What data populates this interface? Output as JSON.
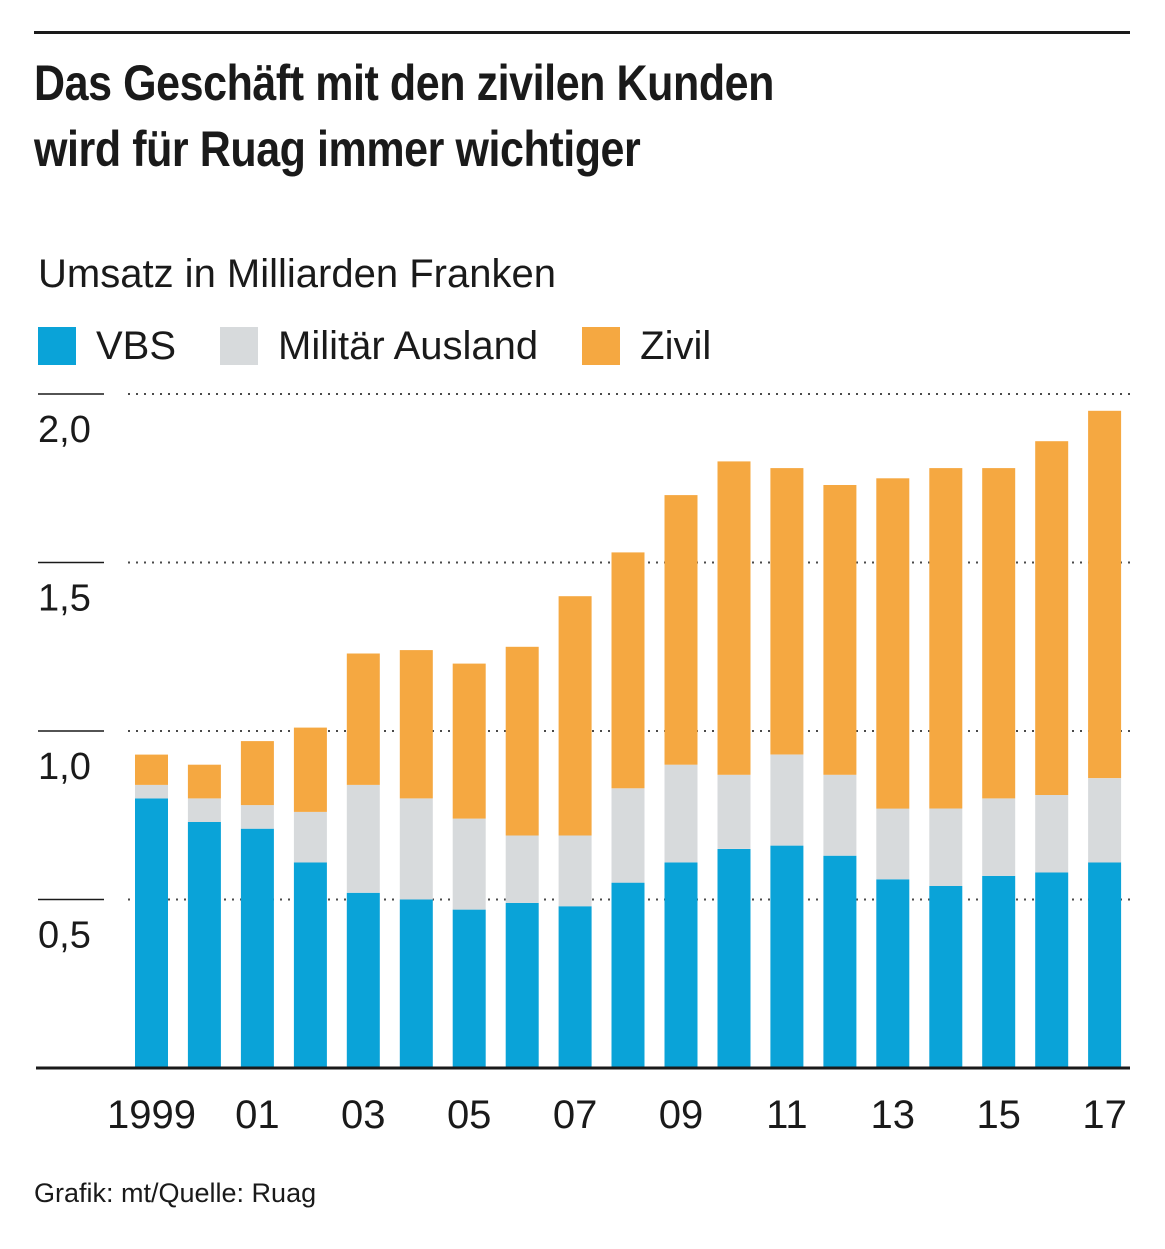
{
  "title_lines": [
    "Das Geschäft mit den zivilen Kunden",
    "wird für Ruag immer wichtiger"
  ],
  "source": "Grafik: mt/Quelle: Ruag",
  "colors": {
    "vbs": "#0aa3d8",
    "militaer": "#d7dadc",
    "zivil": "#f5a841",
    "text": "#1a1a1a",
    "grid": "#4a4a4a"
  },
  "chart_data": {
    "type": "bar",
    "stacked": true,
    "title": "Das Geschäft mit den zivilen Kunden wird für Ruag immer wichtiger",
    "subtitle": "Umsatz in Milliarden Franken",
    "xlabel": "",
    "ylabel": "Umsatz in Milliarden Franken",
    "ylim": [
      0,
      2.0
    ],
    "y_ticks": [
      {
        "value": 0.5,
        "label": "0,5"
      },
      {
        "value": 1.0,
        "label": "1,0"
      },
      {
        "value": 1.5,
        "label": "1,5"
      },
      {
        "value": 2.0,
        "label": "2,0"
      }
    ],
    "grid": true,
    "legend_position": "top-left",
    "categories": [
      "1999",
      "2000",
      "2001",
      "2002",
      "2003",
      "2004",
      "2005",
      "2006",
      "2007",
      "2008",
      "2009",
      "2010",
      "2011",
      "2012",
      "2013",
      "2014",
      "2015",
      "2016",
      "2017"
    ],
    "x_tick_labels": [
      "1999",
      "",
      "01",
      "",
      "03",
      "",
      "05",
      "",
      "07",
      "",
      "09",
      "",
      "11",
      "",
      "13",
      "",
      "15",
      "",
      "17"
    ],
    "series": [
      {
        "name": "VBS",
        "color_key": "vbs",
        "values": [
          0.8,
          0.73,
          0.71,
          0.61,
          0.52,
          0.5,
          0.47,
          0.49,
          0.48,
          0.55,
          0.61,
          0.65,
          0.66,
          0.63,
          0.56,
          0.54,
          0.57,
          0.58,
          0.61
        ]
      },
      {
        "name": "Militär Ausland",
        "color_key": "militaer",
        "values": [
          0.04,
          0.07,
          0.07,
          0.15,
          0.32,
          0.3,
          0.27,
          0.2,
          0.21,
          0.28,
          0.29,
          0.22,
          0.27,
          0.24,
          0.21,
          0.23,
          0.23,
          0.23,
          0.25
        ]
      },
      {
        "name": "Zivil",
        "color_key": "zivil",
        "values": [
          0.09,
          0.1,
          0.19,
          0.25,
          0.39,
          0.44,
          0.46,
          0.56,
          0.71,
          0.7,
          0.8,
          0.93,
          0.85,
          0.86,
          0.98,
          1.01,
          0.98,
          1.05,
          1.09
        ]
      }
    ]
  }
}
